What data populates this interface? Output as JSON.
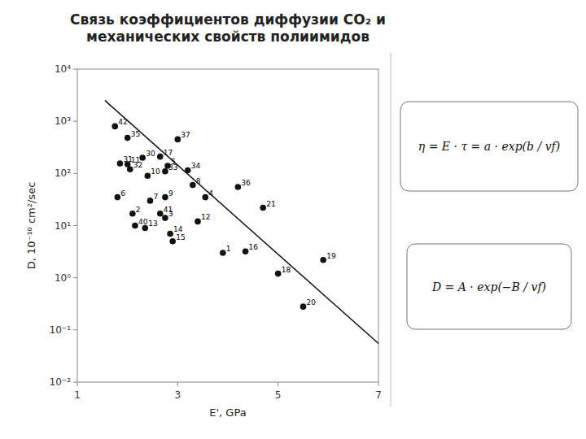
{
  "chart_data": {
    "type": "scatter",
    "title": "Связь коэффициентов диффузии CO₂ и\nмеханических свойств полиимидов",
    "x_label": "E', GPa",
    "y_label": "D, 10⁻¹⁰ cm²/sec",
    "log": "y",
    "grid": false,
    "xlim": [
      1,
      7
    ],
    "ylim": [
      0.01,
      10000
    ],
    "xticks": [
      1,
      3,
      5,
      7
    ],
    "yticks": [
      {
        "value": 0.01,
        "label": "10⁻²"
      },
      {
        "value": 0.1,
        "label": "10⁻¹"
      },
      {
        "value": 1,
        "label": "10⁰"
      },
      {
        "value": 10,
        "label": "10¹"
      },
      {
        "value": 100,
        "label": "10²"
      },
      {
        "value": 1000,
        "label": "10³"
      },
      {
        "value": 10000,
        "label": "10⁴"
      }
    ],
    "series": [
      {
        "type": "scatter",
        "marker": "circle",
        "color": "#111111",
        "labels": [
          "42",
          "35",
          "37",
          "30",
          "17",
          "31",
          "11",
          "5",
          "32",
          "33",
          "34",
          "10",
          "8",
          "36",
          "6",
          "7",
          "9",
          "4",
          "21",
          "2",
          "41",
          "3",
          "12",
          "40",
          "13",
          "14",
          "15",
          "1",
          "16",
          "18",
          "19",
          "20"
        ],
        "x": [
          1.75,
          2.0,
          3.0,
          2.3,
          2.65,
          1.85,
          2.0,
          2.8,
          2.05,
          2.75,
          3.2,
          2.4,
          3.3,
          4.2,
          1.8,
          2.45,
          2.75,
          3.55,
          4.7,
          2.1,
          2.65,
          2.75,
          3.4,
          2.15,
          2.35,
          2.85,
          2.9,
          3.9,
          4.35,
          5.0,
          5.9,
          5.5
        ],
        "values": [
          800,
          480,
          450,
          200,
          210,
          155,
          150,
          140,
          120,
          110,
          115,
          90,
          60,
          55,
          35,
          30,
          35,
          35,
          22,
          17,
          17,
          14,
          12,
          10,
          9,
          7,
          5,
          3.0,
          3.2,
          1.2,
          2.2,
          0.28
        ]
      },
      {
        "type": "line",
        "line_style": "solid",
        "color": "#111111",
        "x": [
          1.55,
          7.0
        ],
        "values": [
          2500,
          0.055
        ]
      }
    ],
    "annotations": [
      "η = E · τ = a · exp(b / vf)",
      "D = A · exp(−B / vf)"
    ]
  }
}
